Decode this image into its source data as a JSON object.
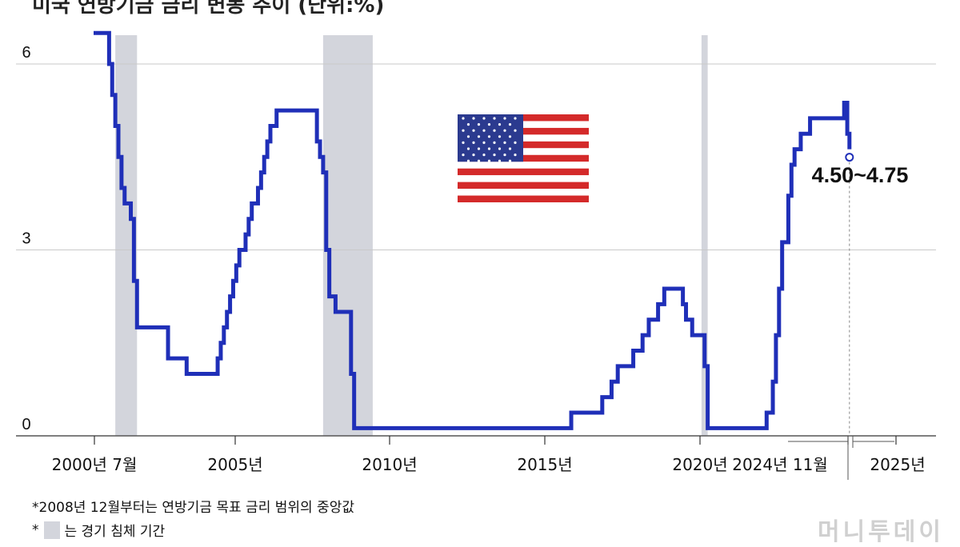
{
  "chart_data": {
    "type": "line",
    "step": true,
    "ylim": [
      0,
      6.5
    ],
    "yticks": [
      0,
      3,
      6
    ],
    "x_axis_ticks": [
      "2000년 7월",
      "2005년",
      "2010년",
      "2015년",
      "2020년",
      "2024년 11월",
      "2025년"
    ],
    "annotation": "4.50~4.75",
    "grid": true,
    "series": [
      {
        "color": "#1f2fb8",
        "x": [
          2000.5,
          2001.0,
          2001.1,
          2001.2,
          2001.3,
          2001.4,
          2001.5,
          2001.7,
          2001.8,
          2001.9,
          2002.9,
          2003.5,
          2004.5,
          2004.6,
          2004.7,
          2004.8,
          2004.9,
          2005.0,
          2005.1,
          2005.2,
          2005.4,
          2005.5,
          2005.6,
          2005.8,
          2005.9,
          2006.0,
          2006.1,
          2006.2,
          2006.4,
          2006.5,
          2007.7,
          2007.8,
          2007.9,
          2008.0,
          2008.1,
          2008.3,
          2008.8,
          2008.9,
          2015.9,
          2016.9,
          2017.2,
          2017.4,
          2017.9,
          2018.2,
          2018.4,
          2018.7,
          2018.9,
          2019.5,
          2019.6,
          2019.8,
          2020.2,
          2020.3,
          2022.2,
          2022.4,
          2022.5,
          2022.6,
          2022.7,
          2022.9,
          2023.0,
          2023.1,
          2023.3,
          2023.6,
          2024.7,
          2024.8,
          2024.87
        ],
        "values": [
          6.5,
          6.0,
          5.5,
          5.0,
          4.5,
          4.0,
          3.75,
          3.5,
          2.5,
          1.75,
          1.25,
          1.0,
          1.25,
          1.5,
          1.75,
          2.0,
          2.25,
          2.5,
          2.75,
          3.0,
          3.25,
          3.5,
          3.75,
          4.0,
          4.25,
          4.5,
          4.75,
          5.0,
          5.25,
          5.25,
          4.75,
          4.5,
          4.25,
          3.0,
          2.25,
          2.0,
          1.0,
          0.125,
          0.375,
          0.625,
          0.875,
          1.125,
          1.375,
          1.625,
          1.875,
          2.125,
          2.375,
          2.125,
          1.875,
          1.625,
          1.125,
          0.125,
          0.375,
          0.875,
          1.625,
          2.375,
          3.125,
          3.875,
          4.375,
          4.625,
          4.875,
          5.125,
          5.375,
          4.875,
          4.625
        ]
      }
    ],
    "recessions": [
      [
        2001.2,
        2001.9
      ],
      [
        2007.9,
        2009.5
      ],
      [
        2020.1,
        2020.3
      ]
    ]
  },
  "top_fragment": "미국 연방기금 금리 변동 추이 (단위:%)",
  "footnote_1": "*2008년 12월부터는 연방기금 목표 금리 범위의 중앙값",
  "footnote_2_prefix": "*",
  "footnote_2_text": "는 경기 침체 기간",
  "watermark": "머니투데이"
}
